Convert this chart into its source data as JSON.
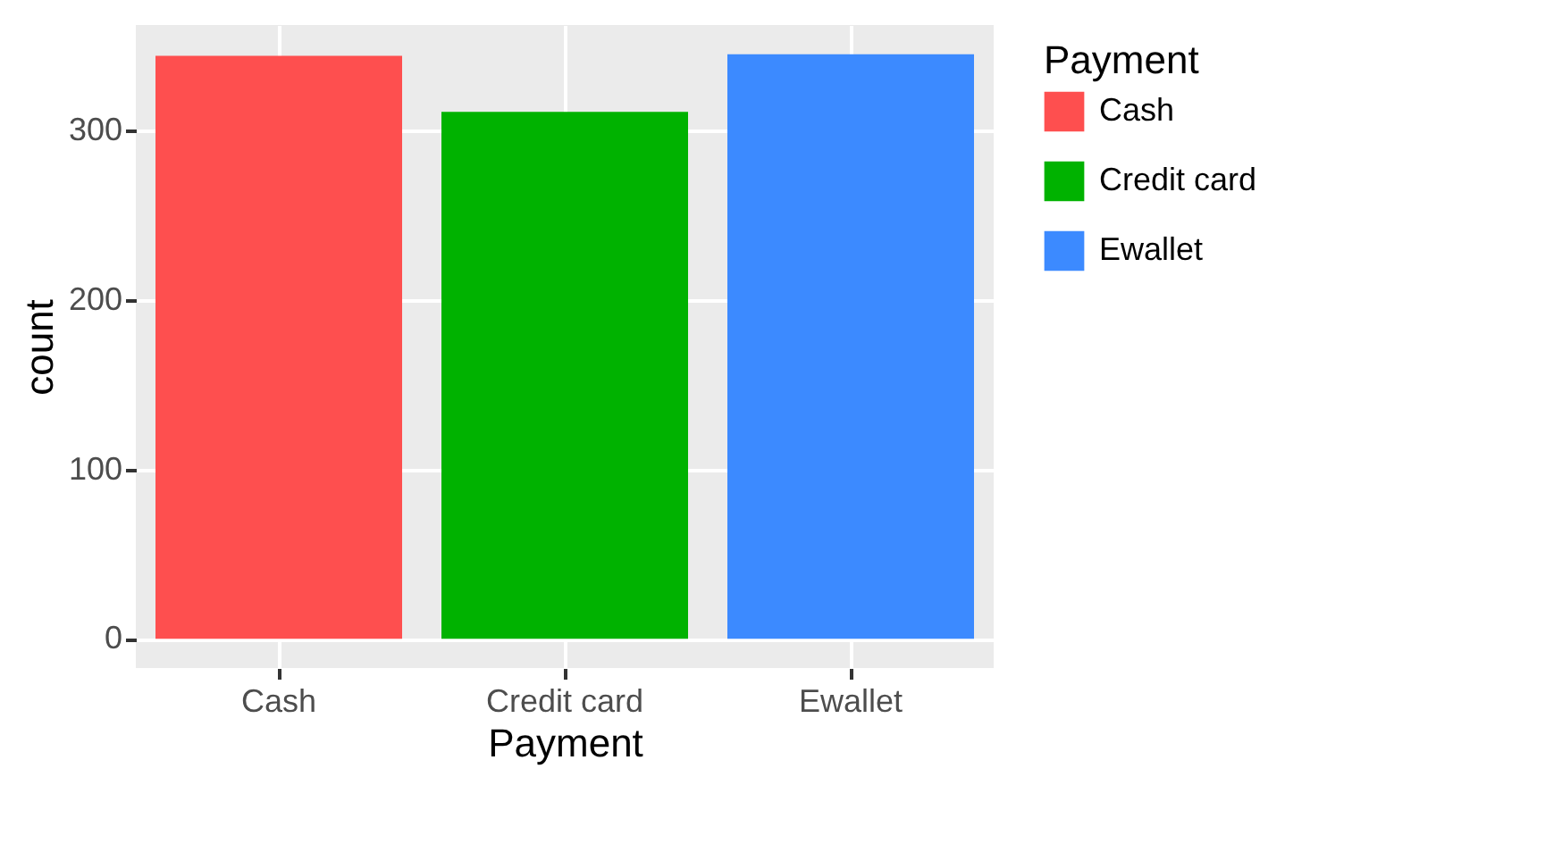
{
  "chart_data": {
    "type": "bar",
    "xlabel": "Payment",
    "ylabel": "count",
    "legend_title": "Payment",
    "categories": [
      "Cash",
      "Credit card",
      "Ewallet"
    ],
    "series": [
      {
        "name": "Cash",
        "color": "#fe4f4f",
        "values": [
          344,
          null,
          null
        ]
      },
      {
        "name": "Credit card",
        "color": "#00b200",
        "values": [
          null,
          311,
          null
        ]
      },
      {
        "name": "Ewallet",
        "color": "#3c8aff",
        "values": [
          null,
          null,
          345
        ]
      }
    ],
    "ylim": [
      -17.25,
      362.25
    ],
    "yticks": [
      0,
      100,
      200,
      300
    ],
    "grid": true,
    "legend": "right"
  }
}
